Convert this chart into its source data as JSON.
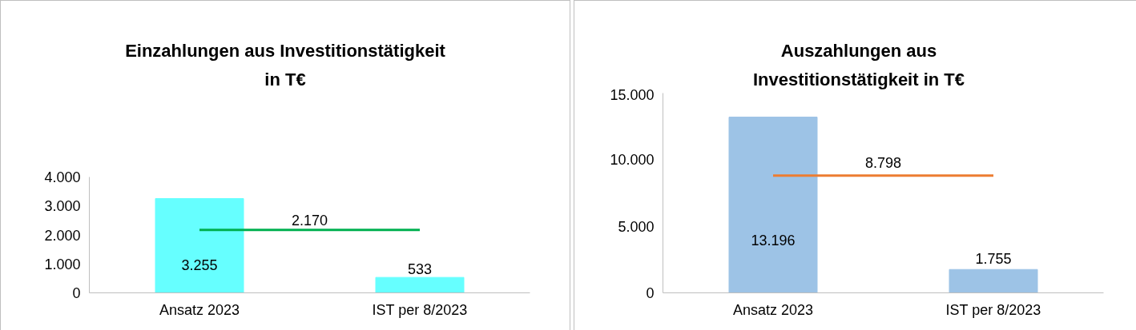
{
  "chart_data": [
    {
      "type": "bar",
      "title": "Einzahlungen aus Investitionstätigkeit in T€",
      "categories": [
        "Ansatz 2023",
        "IST per 8/2023"
      ],
      "series": [
        {
          "color": "#66ffff",
          "values": [
            3255,
            533
          ],
          "value_labels": [
            "3.255",
            "533"
          ]
        },
        {
          "type": "line",
          "color": "#00b050",
          "values": [
            2170,
            2170
          ]
        }
      ],
      "annotations": [
        {
          "text": "2.170",
          "y": 2170
        }
      ],
      "ylim": [
        0,
        4000
      ],
      "yticks": [
        {
          "value": 0,
          "label": "0"
        },
        {
          "value": 1000,
          "label": "1.000"
        },
        {
          "value": 2000,
          "label": "2.000"
        },
        {
          "value": 3000,
          "label": "3.000"
        },
        {
          "value": 4000,
          "label": "4.000"
        }
      ]
    },
    {
      "type": "bar",
      "title": "Auszahlungen aus Investitionstätigkeit in T€",
      "categories": [
        "Ansatz 2023",
        "IST per 8/2023"
      ],
      "series": [
        {
          "color": "#9dc3e6",
          "values": [
            13196,
            1755
          ],
          "value_labels": [
            "13.196",
            "1.755"
          ]
        },
        {
          "type": "line",
          "color": "#ed7d31",
          "values": [
            8798,
            8798
          ]
        }
      ],
      "annotations": [
        {
          "text": "8.798",
          "y": 8798
        }
      ],
      "ylim": [
        0,
        15000
      ],
      "yticks": [
        {
          "value": 0,
          "label": "0"
        },
        {
          "value": 5000,
          "label": "5.000"
        },
        {
          "value": 10000,
          "label": "10.000"
        },
        {
          "value": 15000,
          "label": "15.000"
        }
      ]
    }
  ]
}
